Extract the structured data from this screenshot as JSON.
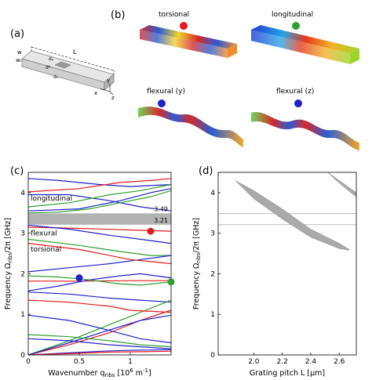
{
  "panels": {
    "a": {
      "label": "(a)"
    },
    "b": {
      "label": "(b)"
    },
    "c": {
      "label": "(c)"
    },
    "d": {
      "label": "(d)"
    }
  },
  "schematic": {
    "labels": {
      "w": "w",
      "wr": "wᵣ",
      "L": "L",
      "y": "y",
      "x": "x",
      "z": "z",
      "dp": "dₚ",
      "dd": "dᵈ",
      "dn": "dₙ"
    }
  },
  "modes": [
    {
      "name": "torsional",
      "dot_color": "#e41a1c"
    },
    {
      "name": "longitudinal",
      "dot_color": "#2ca02c"
    },
    {
      "name": "flexural (y)",
      "dot_color": "#1f1fcc"
    },
    {
      "name": "flexural (z)",
      "dot_color": "#1f1fcc"
    }
  ],
  "chart_data": [
    {
      "type": "line",
      "panel": "c",
      "xlabel": "Wavenumber q_ribs [10^6 m^-1]",
      "ylabel": "Frequency Ω_ribs/2π [GHz]",
      "xlim": [
        0,
        1.4
      ],
      "ylim": [
        0,
        4.5
      ],
      "xticks": [
        "0",
        "0.5",
        "1"
      ],
      "yticks": [
        "0",
        "1",
        "2",
        "3",
        "4"
      ],
      "band_gap": {
        "lower": 3.21,
        "upper": 3.49,
        "lower_label": "3.21",
        "upper_label": "3.49"
      },
      "annotations": [
        "longitudinal",
        "flexural",
        "torsional"
      ],
      "markers": [
        {
          "x": 1.2,
          "y": 3.05,
          "color": "#e41a1c"
        },
        {
          "x": 0.5,
          "y": 1.9,
          "color": "#1f1fcc"
        },
        {
          "x": 1.4,
          "y": 1.8,
          "color": "#2ca02c"
        }
      ],
      "series": [
        {
          "color": "#1f1fcc",
          "x": [
            0,
            0.3,
            0.7,
            1.0,
            1.4
          ],
          "y": [
            4.35,
            4.3,
            4.2,
            4.15,
            4.2
          ]
        },
        {
          "color": "#1f1fcc",
          "x": [
            0,
            0.4,
            0.8,
            1.1,
            1.4
          ],
          "y": [
            3.95,
            3.95,
            3.8,
            3.65,
            3.55
          ]
        },
        {
          "color": "#1f1fcc",
          "x": [
            0,
            0.5,
            0.9,
            1.2,
            1.4
          ],
          "y": [
            3.55,
            3.6,
            3.8,
            4.0,
            4.1
          ]
        },
        {
          "color": "#2ca02c",
          "x": [
            0,
            0.4,
            0.8,
            1.1,
            1.4
          ],
          "y": [
            3.65,
            3.75,
            3.95,
            4.05,
            4.2
          ]
        },
        {
          "color": "#e41a1c",
          "x": [
            0,
            0.5,
            0.9,
            1.2,
            1.4
          ],
          "y": [
            4.02,
            4.1,
            4.25,
            4.3,
            4.35
          ]
        },
        {
          "color": "#2ca02c",
          "x": [
            0,
            0.3,
            0.6,
            0.9,
            1.2,
            1.4
          ],
          "y": [
            3.5,
            3.52,
            3.6,
            3.75,
            3.9,
            4.05
          ]
        },
        {
          "color": "#e41a1c",
          "x": [
            0,
            0.5,
            1.0,
            1.4
          ],
          "y": [
            3.15,
            3.12,
            3.08,
            3.05
          ]
        },
        {
          "color": "#1f1fcc",
          "x": [
            0,
            0.4,
            0.8,
            1.1,
            1.4
          ],
          "y": [
            3.2,
            3.1,
            2.95,
            2.85,
            2.75
          ]
        },
        {
          "color": "#2ca02c",
          "x": [
            0,
            0.5,
            0.9,
            1.2,
            1.4
          ],
          "y": [
            2.85,
            2.7,
            2.55,
            2.45,
            2.45
          ]
        },
        {
          "color": "#1f1fcc",
          "x": [
            0,
            0.4,
            0.8,
            1.1,
            1.4
          ],
          "y": [
            2.05,
            2.15,
            2.25,
            2.35,
            2.45
          ]
        },
        {
          "color": "#e41a1c",
          "x": [
            0,
            0.5,
            1.0,
            1.2,
            1.4
          ],
          "y": [
            2.75,
            2.6,
            2.35,
            2.3,
            2.25
          ]
        },
        {
          "color": "#e41a1c",
          "x": [
            0,
            0.5,
            1.0,
            1.4
          ],
          "y": [
            1.82,
            1.82,
            1.83,
            1.83
          ]
        },
        {
          "color": "#1f1fcc",
          "x": [
            0,
            0.3,
            0.6,
            0.9,
            1.1,
            1.4
          ],
          "y": [
            1.58,
            1.7,
            1.85,
            1.95,
            2.0,
            1.9
          ]
        },
        {
          "color": "#1f1fcc",
          "x": [
            0,
            0.4,
            0.8,
            1.1,
            1.4
          ],
          "y": [
            1.55,
            1.5,
            1.4,
            1.35,
            1.3
          ]
        },
        {
          "color": "#2ca02c",
          "x": [
            0,
            0.3,
            0.6,
            0.9,
            1.1,
            1.4
          ],
          "y": [
            1.95,
            1.92,
            1.85,
            1.75,
            1.72,
            1.8
          ]
        },
        {
          "color": "#2ca02c",
          "x": [
            0,
            0.4,
            0.8,
            1.0,
            1.2,
            1.4
          ],
          "y": [
            0.0,
            0.35,
            0.75,
            0.95,
            1.15,
            1.35
          ]
        },
        {
          "color": "#e41a1c",
          "x": [
            0,
            0.4,
            0.8,
            1.1,
            1.4
          ],
          "y": [
            0.0,
            0.25,
            0.55,
            0.85,
            1.1
          ]
        },
        {
          "color": "#1f1fcc",
          "x": [
            0,
            0.4,
            0.8,
            1.1,
            1.4
          ],
          "y": [
            0.0,
            0.3,
            0.62,
            0.85,
            0.98
          ]
        },
        {
          "color": "#1f1fcc",
          "x": [
            0,
            0.4,
            0.8,
            1.1,
            1.4
          ],
          "y": [
            0.98,
            0.85,
            0.6,
            0.4,
            0.3
          ]
        },
        {
          "color": "#2ca02c",
          "x": [
            0,
            0.4,
            0.8,
            1.1,
            1.4
          ],
          "y": [
            0.5,
            0.45,
            0.35,
            0.25,
            0.2
          ]
        },
        {
          "color": "#1f1fcc",
          "x": [
            0,
            0.4,
            0.8,
            1.1,
            1.4
          ],
          "y": [
            0.4,
            0.35,
            0.25,
            0.2,
            0.15
          ]
        },
        {
          "color": "#1f1fcc",
          "x": [
            0,
            0.4,
            0.8,
            1.1,
            1.4
          ],
          "y": [
            0.0,
            0.05,
            0.1,
            0.12,
            0.13
          ]
        },
        {
          "color": "#e41a1c",
          "x": [
            0,
            0.4,
            0.8,
            1.1,
            1.4
          ],
          "y": [
            0.0,
            0.03,
            0.07,
            0.08,
            0.09
          ]
        },
        {
          "color": "#e41a1c",
          "x": [
            0,
            0.4,
            0.8,
            1.0,
            1.4
          ],
          "y": [
            1.35,
            1.3,
            1.2,
            1.1,
            1.05
          ]
        }
      ]
    },
    {
      "type": "area",
      "panel": "d",
      "xlabel": "Grating pitch L [μm]",
      "ylabel": "Frequency Ω_ribs/2π [GHz]",
      "xlim": [
        1.75,
        2.72
      ],
      "ylim": [
        0,
        4.5
      ],
      "xticks": [
        "2.0",
        "2.2",
        "2.4",
        "2.6"
      ],
      "yticks": [
        "0",
        "1",
        "2",
        "3",
        "4"
      ],
      "reference_lines": [
        3.21,
        3.49
      ],
      "bands": [
        {
          "x": [
            1.87,
            2.0,
            2.2,
            2.4,
            2.6,
            2.67
          ],
          "upper": [
            4.3,
            4.05,
            3.6,
            3.1,
            2.75,
            2.6
          ],
          "lower": [
            4.3,
            3.85,
            3.35,
            2.9,
            2.62,
            2.58
          ]
        },
        {
          "x": [
            2.52,
            2.58,
            2.64,
            2.7,
            2.72
          ],
          "upper": [
            4.5,
            4.35,
            4.2,
            4.05,
            4.0
          ],
          "lower": [
            4.5,
            4.3,
            4.12,
            3.95,
            3.9
          ]
        }
      ],
      "band_color": "#aaaaaa"
    }
  ]
}
